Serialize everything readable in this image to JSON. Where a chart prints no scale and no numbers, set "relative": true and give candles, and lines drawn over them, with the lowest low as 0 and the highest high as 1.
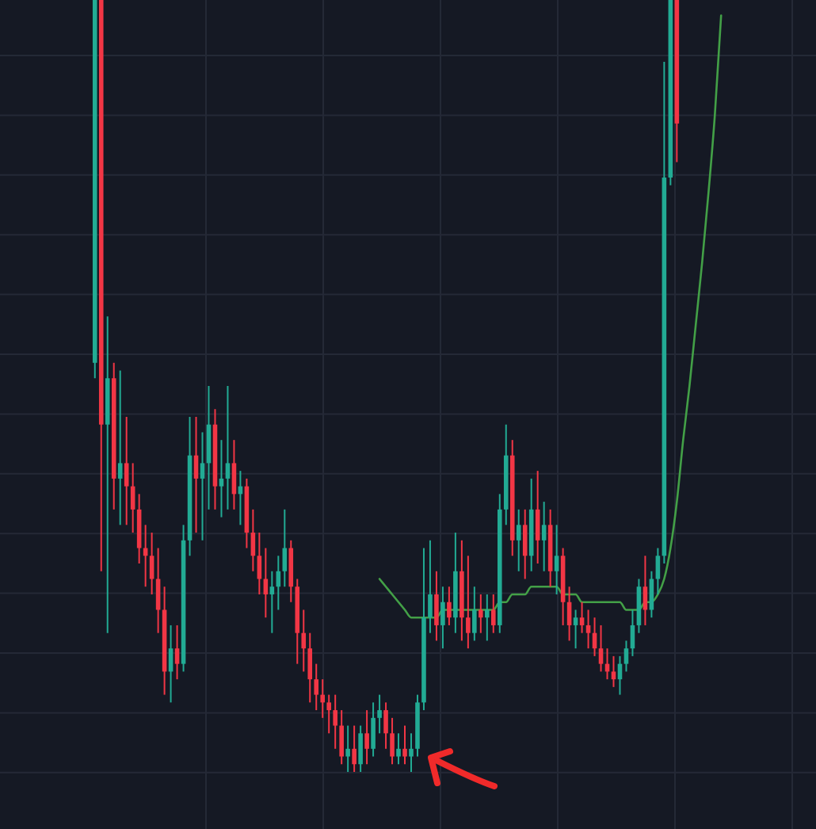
{
  "chart_data": {
    "type": "candlestick",
    "relative": true,
    "grid": true,
    "categories": [
      null,
      null,
      null,
      null,
      null,
      null,
      null,
      null,
      null,
      null,
      null,
      null,
      null,
      null,
      null,
      null,
      null,
      null,
      null,
      null,
      null,
      null,
      null,
      null,
      null,
      null,
      null,
      null,
      null,
      null,
      null,
      null,
      null,
      null,
      null,
      null,
      null,
      null,
      null,
      null,
      null,
      null,
      null,
      null,
      null,
      null,
      null,
      null,
      null,
      null,
      null,
      null,
      null,
      null,
      null,
      null,
      null,
      null,
      null,
      null,
      null,
      null,
      null,
      null,
      null,
      null,
      null,
      null,
      null,
      null,
      null,
      null,
      null,
      null,
      null,
      null,
      null,
      null,
      null,
      null,
      null,
      null,
      null,
      null,
      null,
      null,
      null,
      null,
      null,
      null,
      null,
      null,
      null,
      null,
      null,
      null,
      null,
      null,
      null,
      null,
      null,
      null,
      null,
      null,
      null,
      null,
      null,
      null,
      null,
      null,
      null,
      null,
      null,
      null
    ],
    "ohlc": [
      [
        0.53,
        1,
        0.51,
        1
      ],
      [
        1,
        1,
        0.26,
        0.45
      ],
      [
        0.45,
        0.59,
        0.18,
        0.51
      ],
      [
        0.51,
        0.53,
        0.34,
        0.38
      ],
      [
        0.38,
        0.52,
        0.32,
        0.4
      ],
      [
        0.4,
        0.46,
        0.32,
        0.37
      ],
      [
        0.37,
        0.4,
        0.31,
        0.34
      ],
      [
        0.34,
        0.36,
        0.27,
        0.29
      ],
      [
        0.29,
        0.32,
        0.24,
        0.28
      ],
      [
        0.28,
        0.31,
        0.23,
        0.25
      ],
      [
        0.25,
        0.29,
        0.18,
        0.21
      ],
      [
        0.21,
        0.24,
        0.1,
        0.13
      ],
      [
        0.13,
        0.19,
        0.09,
        0.16
      ],
      [
        0.16,
        0.19,
        0.12,
        0.14
      ],
      [
        0.14,
        0.32,
        0.13,
        0.3
      ],
      [
        0.3,
        0.46,
        0.28,
        0.41
      ],
      [
        0.41,
        0.46,
        0.31,
        0.38
      ],
      [
        0.38,
        0.44,
        0.3,
        0.4
      ],
      [
        0.4,
        0.5,
        0.34,
        0.45
      ],
      [
        0.45,
        0.47,
        0.34,
        0.37
      ],
      [
        0.37,
        0.43,
        0.33,
        0.38
      ],
      [
        0.38,
        0.5,
        0.34,
        0.4
      ],
      [
        0.4,
        0.43,
        0.34,
        0.36
      ],
      [
        0.36,
        0.39,
        0.32,
        0.37
      ],
      [
        0.37,
        0.38,
        0.29,
        0.31
      ],
      [
        0.31,
        0.34,
        0.26,
        0.28
      ],
      [
        0.28,
        0.31,
        0.23,
        0.25
      ],
      [
        0.25,
        0.29,
        0.2,
        0.23
      ],
      [
        0.23,
        0.26,
        0.18,
        0.24
      ],
      [
        0.24,
        0.28,
        0.21,
        0.26
      ],
      [
        0.26,
        0.34,
        0.24,
        0.29
      ],
      [
        0.29,
        0.3,
        0.22,
        0.24
      ],
      [
        0.24,
        0.25,
        0.14,
        0.18
      ],
      [
        0.18,
        0.21,
        0.13,
        0.16
      ],
      [
        0.16,
        0.18,
        0.09,
        0.12
      ],
      [
        0.12,
        0.14,
        0.08,
        0.1
      ],
      [
        0.1,
        0.12,
        0.07,
        0.09
      ],
      [
        0.09,
        0.1,
        0.05,
        0.08
      ],
      [
        0.08,
        0.1,
        0.03,
        0.06
      ],
      [
        0.06,
        0.08,
        0.01,
        0.02
      ],
      [
        0.02,
        0.06,
        0,
        0.03
      ],
      [
        0.03,
        0.06,
        0,
        0.01
      ],
      [
        0.01,
        0.06,
        0,
        0.05
      ],
      [
        0.05,
        0.08,
        0.01,
        0.03
      ],
      [
        0.03,
        0.09,
        0.02,
        0.07
      ],
      [
        0.07,
        0.1,
        0.05,
        0.08
      ],
      [
        0.08,
        0.09,
        0.03,
        0.05
      ],
      [
        0.05,
        0.07,
        0.01,
        0.02
      ],
      [
        0.02,
        0.05,
        0.01,
        0.03
      ],
      [
        0.03,
        0.06,
        0.01,
        0.02
      ],
      [
        0.02,
        0.05,
        0,
        0.03
      ],
      [
        0.03,
        0.1,
        0.02,
        0.09
      ],
      [
        0.09,
        0.29,
        0.08,
        0.2
      ],
      [
        0.2,
        0.3,
        0.18,
        0.23
      ],
      [
        0.23,
        0.26,
        0.17,
        0.19
      ],
      [
        0.19,
        0.24,
        0.16,
        0.22
      ],
      [
        0.22,
        0.24,
        0.19,
        0.2
      ],
      [
        0.2,
        0.31,
        0.18,
        0.26
      ],
      [
        0.26,
        0.3,
        0.17,
        0.2
      ],
      [
        0.2,
        0.28,
        0.16,
        0.18
      ],
      [
        0.18,
        0.24,
        0.17,
        0.21
      ],
      [
        0.21,
        0.23,
        0.18,
        0.2
      ],
      [
        0.2,
        0.23,
        0.17,
        0.21
      ],
      [
        0.21,
        0.23,
        0.18,
        0.19
      ],
      [
        0.19,
        0.36,
        0.18,
        0.34
      ],
      [
        0.34,
        0.45,
        0.32,
        0.41
      ],
      [
        0.41,
        0.43,
        0.28,
        0.3
      ],
      [
        0.3,
        0.34,
        0.26,
        0.32
      ],
      [
        0.32,
        0.34,
        0.25,
        0.28
      ],
      [
        0.28,
        0.38,
        0.26,
        0.34
      ],
      [
        0.34,
        0.39,
        0.27,
        0.3
      ],
      [
        0.3,
        0.35,
        0.26,
        0.32
      ],
      [
        0.32,
        0.34,
        0.24,
        0.26
      ],
      [
        0.26,
        0.32,
        0.23,
        0.28
      ],
      [
        0.28,
        0.29,
        0.19,
        0.22
      ],
      [
        0.22,
        0.24,
        0.17,
        0.19
      ],
      [
        0.19,
        0.21,
        0.16,
        0.2
      ],
      [
        0.2,
        0.22,
        0.18,
        0.19
      ],
      [
        0.19,
        0.21,
        0.16,
        0.18
      ],
      [
        0.18,
        0.2,
        0.15,
        0.16
      ],
      [
        0.16,
        0.19,
        0.13,
        0.14
      ],
      [
        0.14,
        0.16,
        0.12,
        0.13
      ],
      [
        0.13,
        0.15,
        0.11,
        0.12
      ],
      [
        0.12,
        0.15,
        0.1,
        0.14
      ],
      [
        0.14,
        0.17,
        0.13,
        0.16
      ],
      [
        0.16,
        0.21,
        0.15,
        0.19
      ],
      [
        0.19,
        0.25,
        0.18,
        0.24
      ],
      [
        0.24,
        0.28,
        0.19,
        0.21
      ],
      [
        0.21,
        0.26,
        0.2,
        0.25
      ],
      [
        0.25,
        0.29,
        0.23,
        0.28
      ],
      [
        0.28,
        0.92,
        0.27,
        0.77
      ],
      [
        0.77,
        1,
        0.76,
        1
      ],
      [
        1,
        1,
        0.79,
        0.84
      ],
      null,
      null,
      null,
      null,
      null,
      null,
      null,
      null,
      null,
      null,
      null,
      null,
      null,
      null,
      null,
      null,
      null,
      null,
      null,
      null,
      null
    ],
    "series": [
      {
        "type": "line",
        "color": "#43a047",
        "values": [
          null,
          null,
          null,
          null,
          null,
          null,
          null,
          null,
          null,
          null,
          null,
          null,
          null,
          null,
          null,
          null,
          null,
          null,
          null,
          null,
          null,
          null,
          null,
          null,
          null,
          null,
          null,
          null,
          null,
          null,
          null,
          null,
          null,
          null,
          null,
          null,
          null,
          null,
          null,
          null,
          null,
          null,
          null,
          null,
          null,
          0.25,
          0.24,
          0.23,
          0.22,
          0.21,
          0.2,
          0.2,
          0.2,
          0.2,
          0.2,
          0.21,
          0.21,
          0.21,
          0.21,
          0.21,
          0.21,
          0.21,
          0.21,
          0.21,
          0.22,
          0.22,
          0.23,
          0.23,
          0.23,
          0.24,
          0.24,
          0.24,
          0.24,
          0.24,
          0.23,
          0.23,
          0.23,
          0.22,
          0.22,
          0.22,
          0.22,
          0.22,
          0.22,
          0.22,
          0.21,
          0.21,
          0.21,
          0.22,
          0.22,
          0.23,
          0.25,
          0.29,
          0.35,
          0.43,
          0.5,
          0.58,
          0.66,
          0.75,
          0.85,
          0.98,
          null,
          null,
          null,
          null,
          null,
          null,
          null,
          null,
          null,
          null,
          null,
          null,
          null,
          null
        ]
      }
    ]
  }
}
